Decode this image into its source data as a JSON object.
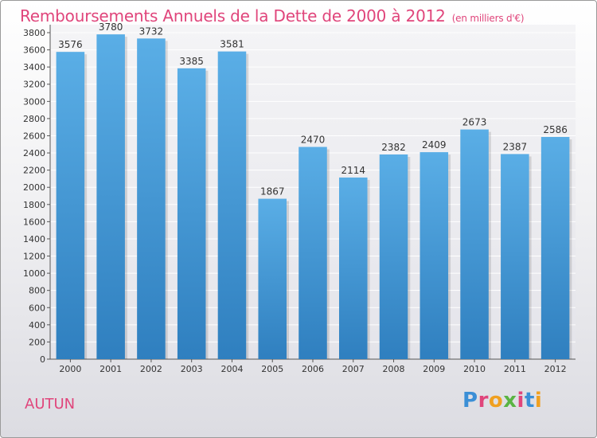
{
  "header": {
    "title": "Remboursements Annuels de la Dette de 2000 à 2012",
    "unit": "(en milliers d'€)"
  },
  "footer": {
    "city": "AUTUN",
    "logo_text": "Proxiti"
  },
  "colors": {
    "title": "#e0457b",
    "bar_light": "#5aaee6",
    "bar_dark": "#2f7fbf",
    "logo_letters": [
      "#3b8fd6",
      "#e0457b",
      "#f0a020",
      "#5ab443",
      "#e0457b",
      "#3b8fd6",
      "#f0a020"
    ]
  },
  "chart_data": {
    "type": "bar",
    "title": "Remboursements Annuels de la Dette de 2000 à 2012",
    "subtitle": "(en milliers d'€)",
    "xlabel": "",
    "ylabel": "",
    "categories": [
      "2000",
      "2001",
      "2002",
      "2003",
      "2004",
      "2005",
      "2006",
      "2007",
      "2008",
      "2009",
      "2010",
      "2011",
      "2012"
    ],
    "values": [
      3576,
      3780,
      3732,
      3385,
      3581,
      1867,
      2470,
      2114,
      2382,
      2409,
      2673,
      2387,
      2586
    ],
    "ylim": [
      0,
      3800
    ],
    "yticks": [
      0,
      200,
      400,
      600,
      800,
      1000,
      1200,
      1400,
      1600,
      1800,
      2000,
      2200,
      2400,
      2600,
      2800,
      3000,
      3200,
      3400,
      3600,
      3800
    ],
    "grid": "horizontal",
    "data_labels": true,
    "legend": "none"
  }
}
